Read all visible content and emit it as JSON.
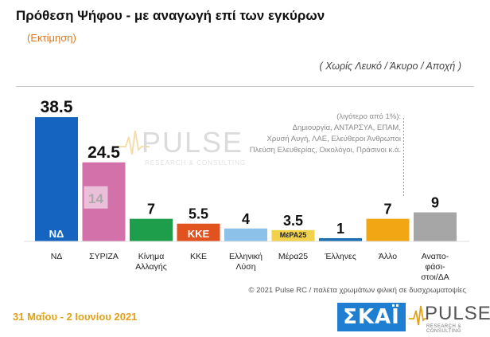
{
  "title": "Πρόθεση Ψήφου - με αναγωγή επί των εγκύρων",
  "subtitle": "(Εκτίμηση)",
  "note": "( Χωρίς Λευκό / Άκυρο / Αποχή )",
  "other_box": {
    "heading": "(λιγότερο από 1%):",
    "lines": [
      "Δημιουργία, ΑΝΤΑΡΣΥΑ, ΕΠΑΜ,",
      "Χρυσή Αυγή, ΛΑΕ, Ελεύθεροι Άνθρωποι",
      "Πλεύση Ελευθερίας, Οικολόγοι, Πράσινοι κ.ά."
    ]
  },
  "copyright": "© 2021 Pulse RC  /  παλέτα χρωμάτων φιλική σε δυσχρωματοψίες",
  "date": "31 Μαΐου - 2 Ιουνίου 2021",
  "brand": {
    "skai": "ΣΚΑΪ",
    "pulse": "PULSE",
    "pulse_tagline": "RESEARCH & CONSULTING"
  },
  "chart_data": {
    "type": "bar",
    "categories": [
      "ΝΔ",
      "ΣΥΡΙΖΑ",
      "Κίνημα Αλλαγής",
      "ΚΚΕ",
      "Ελληνική Λύση",
      "Μέρα25",
      "Έλληνες",
      "Άλλο",
      "Αναπο-φάσι-στοι/ΔΑ"
    ],
    "category_lines": [
      [
        "ΝΔ"
      ],
      [
        "ΣΥΡΙΖΑ"
      ],
      [
        "Κίνημα",
        "Αλλαγής"
      ],
      [
        "ΚΚΕ"
      ],
      [
        "Ελληνική",
        "Λύση"
      ],
      [
        "Μέρα25"
      ],
      [
        "Έλληνες"
      ],
      [
        "Άλλο"
      ],
      [
        "Αναπο-",
        "φάσι-",
        "στοι/ΔΑ"
      ]
    ],
    "values": [
      38.5,
      24.5,
      7,
      5.5,
      4,
      3.5,
      1,
      7,
      9
    ],
    "value_labels": [
      "38.5",
      "24.5",
      "7",
      "5.5",
      "4",
      "3.5",
      "1",
      "7",
      "9"
    ],
    "colors": [
      "#1565c0",
      "#d371aa",
      "#1e9e4a",
      "#e2521f",
      "#8cc1ea",
      "#f3d24b",
      "#1b6fb0",
      "#f2a614",
      "#a6a6a6"
    ],
    "logos": [
      "ΝΔ",
      "",
      "",
      "ΚΚΕ",
      "",
      "ΜέΡΑ25",
      "",
      "",
      ""
    ],
    "gap_marker": {
      "category": "ΣΥΡΙΖΑ",
      "label": "14"
    },
    "ylim": [
      0,
      40
    ]
  }
}
